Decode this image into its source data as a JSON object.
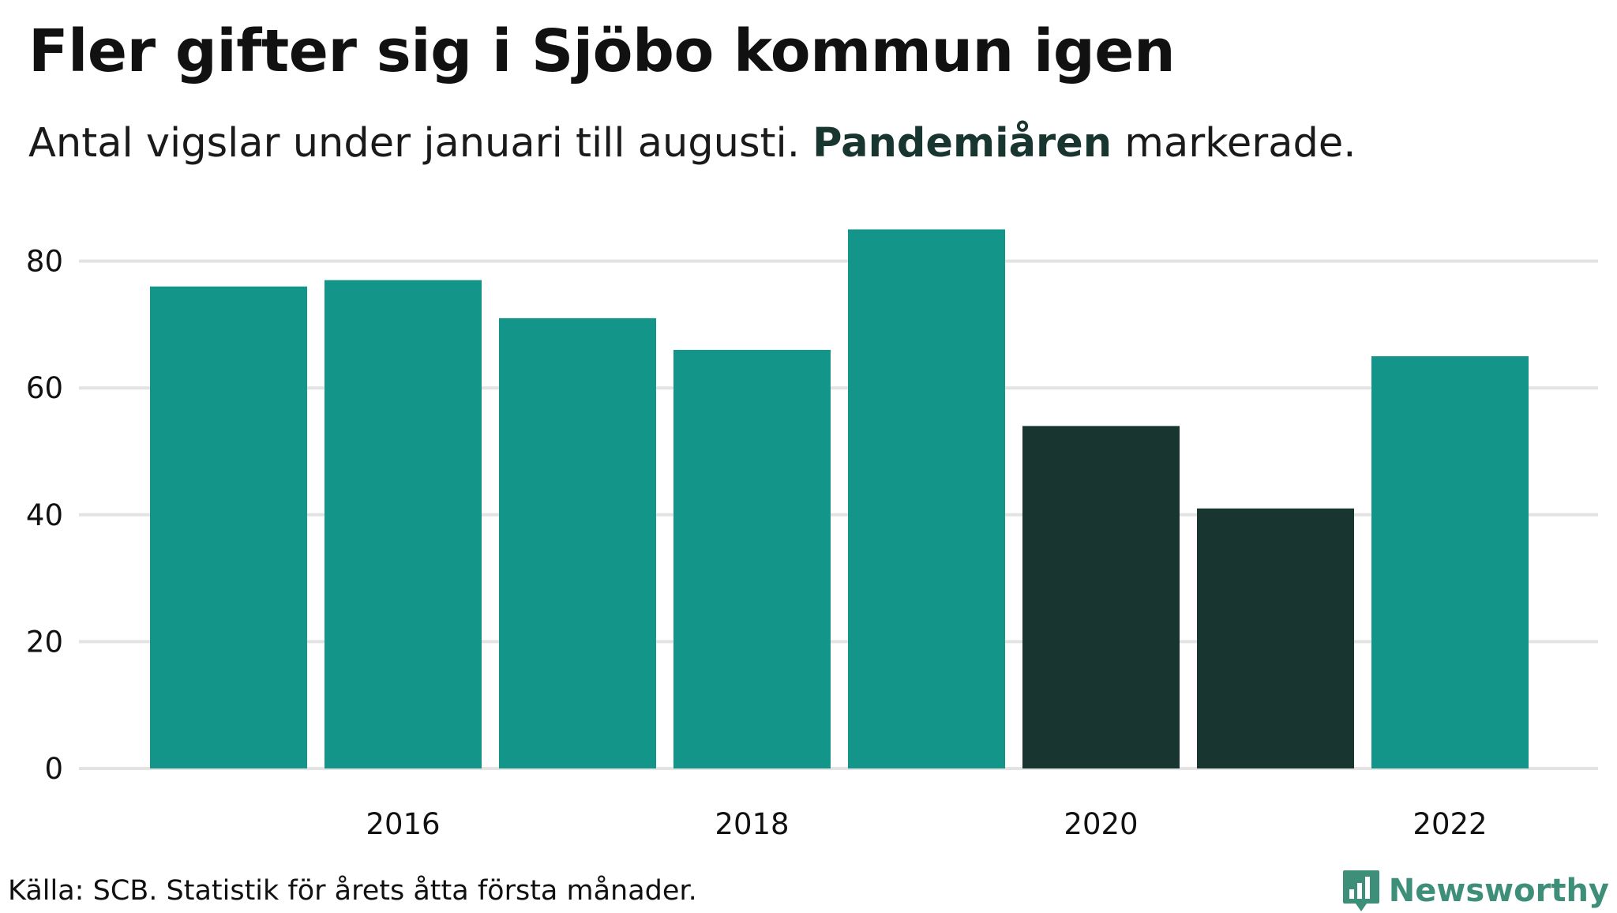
{
  "header": {
    "title": "Fler gifter sig i Sjöbo kommun igen",
    "subtitle_before": "Antal vigslar under januari till augusti. ",
    "subtitle_highlight": "Pandemiåren",
    "subtitle_after": " markerade."
  },
  "colors": {
    "normal": "#14958a",
    "pandemic": "#18362f",
    "grid": "#e3e3e3",
    "highlight_text": "#18362f",
    "brand": "#3d8f7a"
  },
  "chart_data": {
    "type": "bar",
    "title": "Fler gifter sig i Sjöbo kommun igen",
    "subtitle": "Antal vigslar under januari till augusti. Pandemiåren markerade.",
    "xlabel": "",
    "ylabel": "",
    "categories": [
      "2015",
      "2016",
      "2017",
      "2018",
      "2019",
      "2020",
      "2021",
      "2022"
    ],
    "values": [
      76,
      77,
      71,
      66,
      85,
      54,
      41,
      65
    ],
    "highlighted": [
      false,
      false,
      false,
      false,
      false,
      true,
      true,
      false
    ],
    "ylim": [
      0,
      85
    ],
    "yticks": [
      0,
      20,
      40,
      60,
      80
    ],
    "xtick_labels": [
      "2016",
      "2018",
      "2020",
      "2022"
    ],
    "grid": true,
    "legend": "none"
  },
  "footer": {
    "source": "Källa: SCB. Statistik för årets åtta första månader.",
    "brand": "Newsworthy",
    "brand_icon": "newsworthy-logo-icon"
  }
}
